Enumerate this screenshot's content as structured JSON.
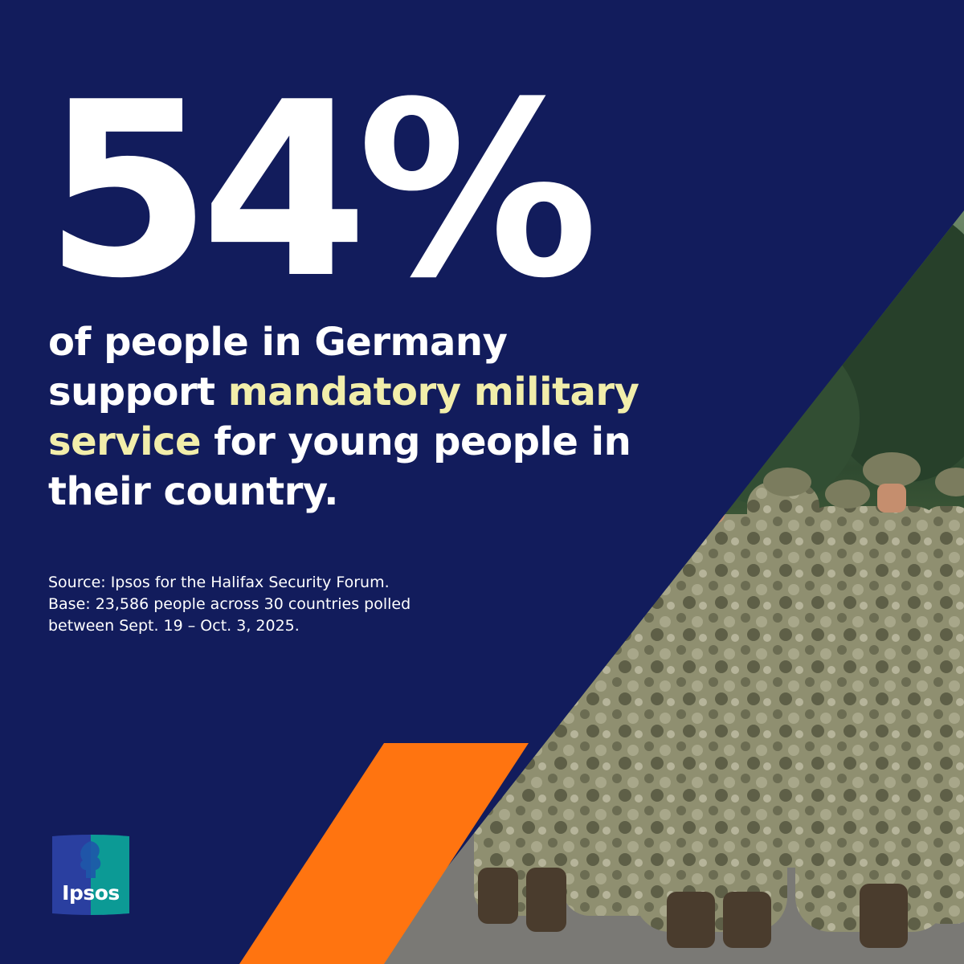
{
  "stat": {
    "value": "54%"
  },
  "headline": {
    "part1": "of people in Germany support ",
    "highlight": "mandatory military service",
    "part2": " for young people in their country."
  },
  "source": {
    "line1": "Source: Ipsos for the Halifax Security Forum.",
    "line2": "Base: 23,586 people across 30 countries polled",
    "line3": "between Sept. 19 – Oct. 3, 2025."
  },
  "brand": {
    "name": "Ipsos"
  },
  "colors": {
    "navy": "#121c5c",
    "orange": "#ff7410",
    "highlight": "#f2eeaa",
    "logo_blue": "#2a3fa0",
    "logo_teal": "#0c9a95"
  }
}
